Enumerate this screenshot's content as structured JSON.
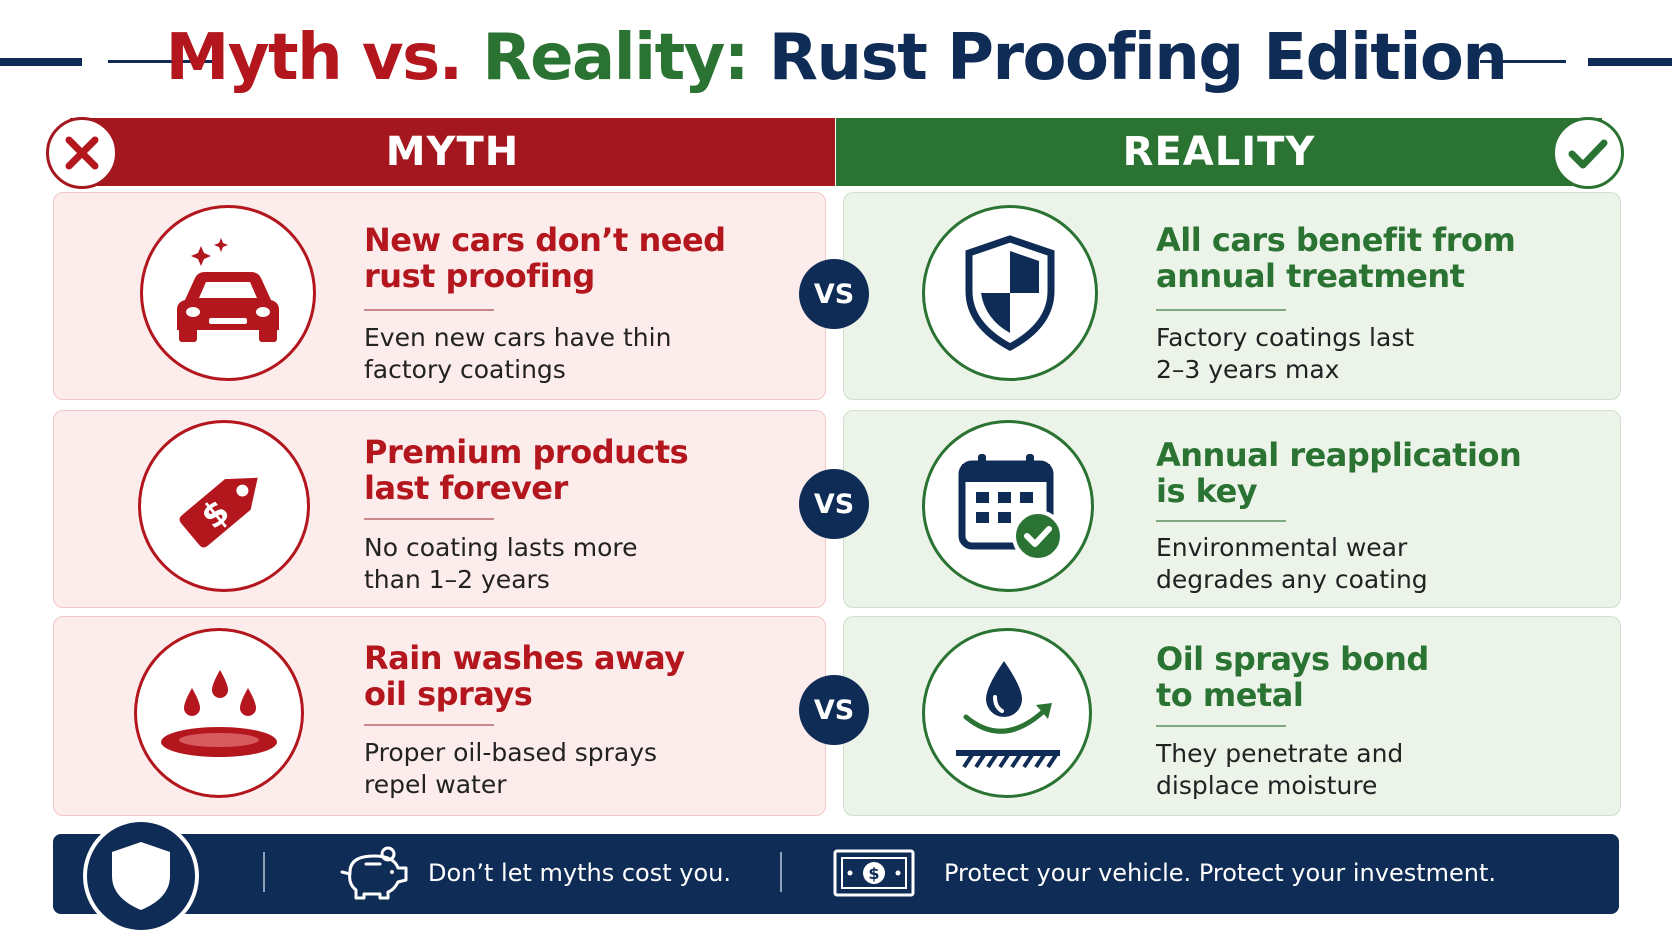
{
  "title": {
    "myth": "Myth",
    "vs": "vs.",
    "reality": "Reality:",
    "rest": "Rust Proofing Edition"
  },
  "headers": {
    "myth": "MYTH",
    "reality": "REALITY"
  },
  "vs_label": "VS",
  "rows": [
    {
      "myth": {
        "title_line1": "New cars don’t need",
        "title_line2": "rust proofing",
        "body_line1": "Even new cars have thin",
        "body_line2": "factory coatings",
        "icon": "car-icon"
      },
      "reality": {
        "title_line1": "All cars benefit from",
        "title_line2": "annual treatment",
        "body_line1": "Factory coatings last",
        "body_line2": "2–3 years max",
        "icon": "shield-icon"
      }
    },
    {
      "myth": {
        "title_line1": "Premium products",
        "title_line2": "last forever",
        "body_line1": "No coating lasts more",
        "body_line2": "than 1–2 years",
        "icon": "price-tag-icon"
      },
      "reality": {
        "title_line1": "Annual reapplication",
        "title_line2": "is key",
        "body_line1": "Environmental wear",
        "body_line2": "degrades any coating",
        "icon": "calendar-check-icon"
      }
    },
    {
      "myth": {
        "title_line1": "Rain washes away",
        "title_line2": "oil sprays",
        "body_line1": "Proper oil-based sprays",
        "body_line2": "repel water",
        "icon": "rain-puddle-icon"
      },
      "reality": {
        "title_line1": "Oil sprays bond",
        "title_line2": "to metal",
        "body_line1": "They penetrate and",
        "body_line2": "displace moisture",
        "icon": "oil-drop-bond-icon"
      }
    }
  ],
  "footer": {
    "message1": "Don’t let myths cost you.",
    "message2": "Protect your vehicle. Protect your investment.",
    "icons": [
      "shield-icon",
      "piggy-bank-icon",
      "dollar-bill-icon"
    ]
  },
  "colors": {
    "myth_red": "#b3161d",
    "reality_green": "#2a7332",
    "navy": "#0f2c56",
    "myth_bg": "#fcecec",
    "reality_bg": "#ecf4ea"
  }
}
